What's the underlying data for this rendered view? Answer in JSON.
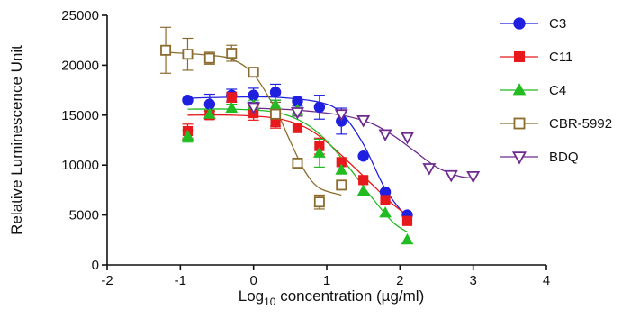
{
  "chart_data": {
    "type": "scatter",
    "xlabel_prefix": "Log",
    "xlabel_sub": "10",
    "xlabel_rest": " concentration (µg/ml)",
    "ylabel": "Relative Luminescence Unit",
    "xlim": [
      -2,
      4
    ],
    "ylim": [
      0,
      25000
    ],
    "xticks": [
      -2,
      -1,
      0,
      1,
      2,
      3,
      4
    ],
    "yticks": [
      0,
      5000,
      10000,
      15000,
      20000,
      25000
    ],
    "legend_position": "right",
    "series": [
      {
        "name": "C3",
        "color": "#1f1fe0",
        "marker": "circle",
        "filled": true,
        "x": [
          -0.9,
          -0.6,
          -0.3,
          0.0,
          0.3,
          0.6,
          0.9,
          1.2,
          1.5,
          1.8,
          2.1
        ],
        "y": [
          16500,
          16100,
          17000,
          17000,
          17300,
          16400,
          15800,
          14400,
          10900,
          7300,
          5000
        ],
        "err": [
          0,
          1000,
          600,
          700,
          800,
          500,
          1200,
          1300,
          0,
          0,
          0
        ],
        "fit_x": [
          -0.9,
          -0.3,
          0.3,
          0.9,
          1.2,
          1.5,
          1.8,
          2.1
        ],
        "fit_y": [
          16700,
          16800,
          16800,
          16300,
          15200,
          12100,
          7600,
          4700
        ]
      },
      {
        "name": "C11",
        "color": "#e8191c",
        "marker": "square",
        "filled": true,
        "x": [
          -0.9,
          -0.6,
          -0.3,
          0.0,
          0.3,
          0.6,
          0.9,
          1.2,
          1.5,
          1.8,
          2.1
        ],
        "y": [
          13400,
          15000,
          16800,
          15200,
          14300,
          13700,
          11900,
          10300,
          8500,
          6500,
          4400
        ],
        "err": [
          700,
          400,
          500,
          700,
          600,
          0,
          800,
          0,
          0,
          0,
          0
        ],
        "fit_x": [
          -0.9,
          -0.3,
          0.3,
          0.7,
          1.0,
          1.3,
          1.6,
          1.9,
          2.1
        ],
        "fit_y": [
          15000,
          15000,
          14700,
          13800,
          12300,
          10300,
          8200,
          6100,
          5000
        ]
      },
      {
        "name": "C4",
        "color": "#22bb22",
        "marker": "triangle-up",
        "filled": true,
        "x": [
          -0.9,
          -0.6,
          -0.3,
          0.0,
          0.3,
          0.6,
          0.9,
          1.2,
          1.5,
          1.8,
          2.1
        ],
        "y": [
          12900,
          15100,
          15700,
          16000,
          16000,
          15500,
          11200,
          9500,
          7400,
          5200,
          2500
        ],
        "err": [
          600,
          400,
          400,
          500,
          500,
          500,
          1400,
          0,
          0,
          0,
          0
        ],
        "fit_x": [
          -0.9,
          -0.3,
          0.3,
          0.7,
          1.0,
          1.3,
          1.6,
          1.9,
          2.1
        ],
        "fit_y": [
          15600,
          15600,
          15300,
          14200,
          12400,
          9800,
          6900,
          4300,
          3300
        ]
      },
      {
        "name": "CBR-5992",
        "color": "#8b6b2e",
        "marker": "square",
        "filled": false,
        "x": [
          -1.2,
          -0.9,
          -0.6,
          -0.3,
          0.0,
          0.3,
          0.6,
          0.9,
          1.2
        ],
        "y": [
          21500,
          21100,
          20700,
          21200,
          19300,
          15100,
          10200,
          6300,
          8000
        ],
        "err": [
          2300,
          1600,
          600,
          800,
          0,
          1200,
          0,
          700,
          0
        ],
        "fit_x": [
          -1.2,
          -0.6,
          -0.3,
          0.0,
          0.3,
          0.5,
          0.7,
          0.9,
          1.2
        ],
        "fit_y": [
          21300,
          21000,
          20600,
          19100,
          15600,
          12400,
          9400,
          7700,
          7000
        ]
      },
      {
        "name": "BDQ",
        "color": "#6e2a8e",
        "marker": "triangle-down",
        "filled": false,
        "x": [
          0.0,
          0.6,
          1.2,
          1.5,
          1.8,
          2.1,
          2.4,
          2.7,
          3.0
        ],
        "y": [
          15800,
          15300,
          15100,
          14500,
          13100,
          12800,
          9700,
          9000,
          8900
        ],
        "err": [
          0,
          400,
          0,
          0,
          0,
          0,
          0,
          0,
          0
        ],
        "fit_x": [
          0.0,
          0.6,
          1.2,
          1.6,
          1.9,
          2.2,
          2.5,
          2.8,
          3.0
        ],
        "fit_y": [
          15700,
          15500,
          15000,
          14200,
          13000,
          11400,
          9800,
          8900,
          8700
        ]
      }
    ]
  }
}
